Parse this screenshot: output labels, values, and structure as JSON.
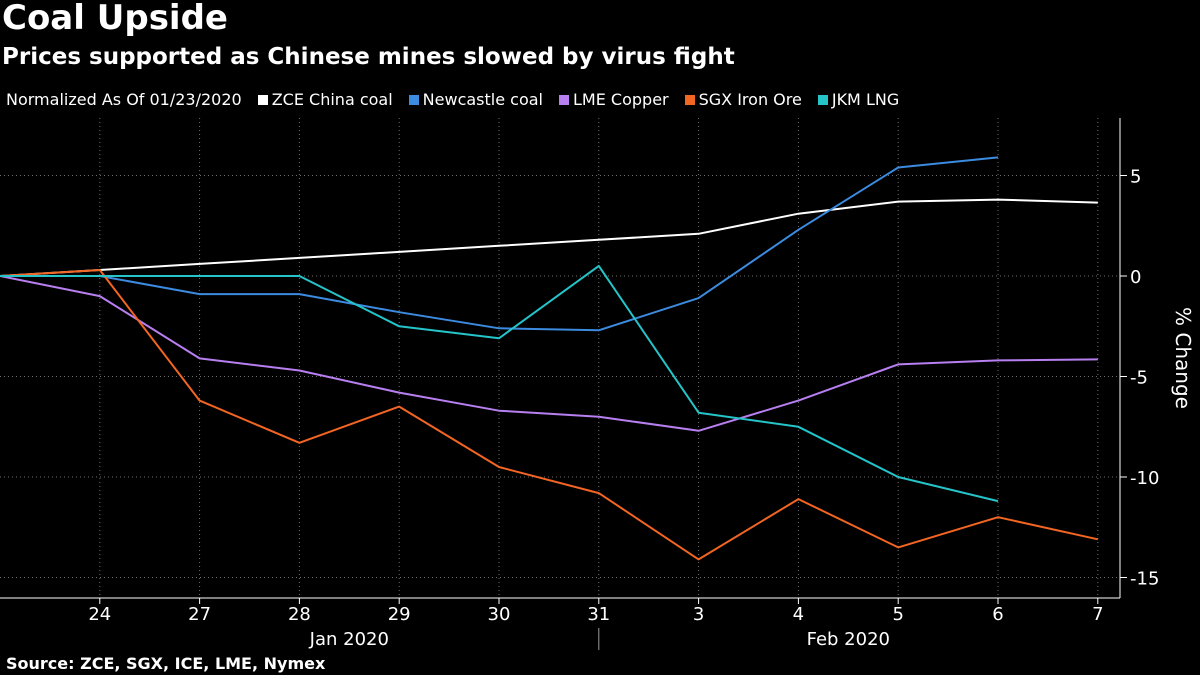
{
  "header": {
    "title": "Coal Upside",
    "subtitle": "Prices supported as Chinese mines slowed by virus fight"
  },
  "legend": {
    "lead": "Normalized As Of 01/23/2020"
  },
  "source": "Source: ZCE, SGX, ICE, LME, Nymex",
  "chart_data": {
    "type": "line",
    "title": "Coal Upside",
    "subtitle": "Prices supported as Chinese mines slowed by virus fight",
    "xlabel": "",
    "ylabel": "% Change",
    "ylim": [
      -15.5,
      8
    ],
    "yticks": [
      5,
      0,
      -5,
      -10,
      -15
    ],
    "ytick_labels": [
      "5",
      "0",
      "-5",
      "-10",
      "-15"
    ],
    "grid": true,
    "legend_position": "top",
    "categories": [
      "23",
      "24",
      "27",
      "28",
      "29",
      "30",
      "31",
      "3",
      "4",
      "5",
      "6",
      "7"
    ],
    "x_tick_labels": [
      "24",
      "27",
      "28",
      "29",
      "30",
      "31",
      "3",
      "4",
      "5",
      "6",
      "7"
    ],
    "month_labels": [
      {
        "label": "Jan 2020",
        "center": 3.5
      },
      {
        "label": "Feb 2020",
        "center": 8.5
      }
    ],
    "series": [
      {
        "name": "ZCE China coal",
        "color": "#ffffff",
        "values": [
          0,
          0.3,
          0.6,
          0.9,
          1.2,
          1.5,
          1.8,
          2.1,
          3.1,
          3.7,
          3.8,
          3.65
        ]
      },
      {
        "name": "Newcastle coal",
        "color": "#3c8be0",
        "values": [
          0,
          0,
          -0.9,
          -0.9,
          -1.8,
          -2.6,
          -2.7,
          -1.1,
          2.3,
          5.4,
          5.9,
          null
        ]
      },
      {
        "name": "LME Copper",
        "color": "#b77ff0",
        "values": [
          0,
          -1.0,
          -4.1,
          -4.7,
          -5.8,
          -6.7,
          -7.0,
          -7.7,
          -6.2,
          -4.4,
          -4.2,
          -4.15
        ]
      },
      {
        "name": "SGX Iron Ore",
        "color": "#f26522",
        "values": [
          0,
          0.3,
          -6.2,
          -8.3,
          -6.5,
          -9.5,
          -10.8,
          -14.1,
          -11.1,
          -13.5,
          -12.0,
          -13.1
        ]
      },
      {
        "name": "JKM LNG",
        "color": "#25c4c9",
        "values": [
          0,
          0,
          0,
          0,
          -2.5,
          -3.1,
          0.5,
          -6.8,
          -7.5,
          -10.0,
          -11.2,
          null
        ]
      }
    ]
  }
}
